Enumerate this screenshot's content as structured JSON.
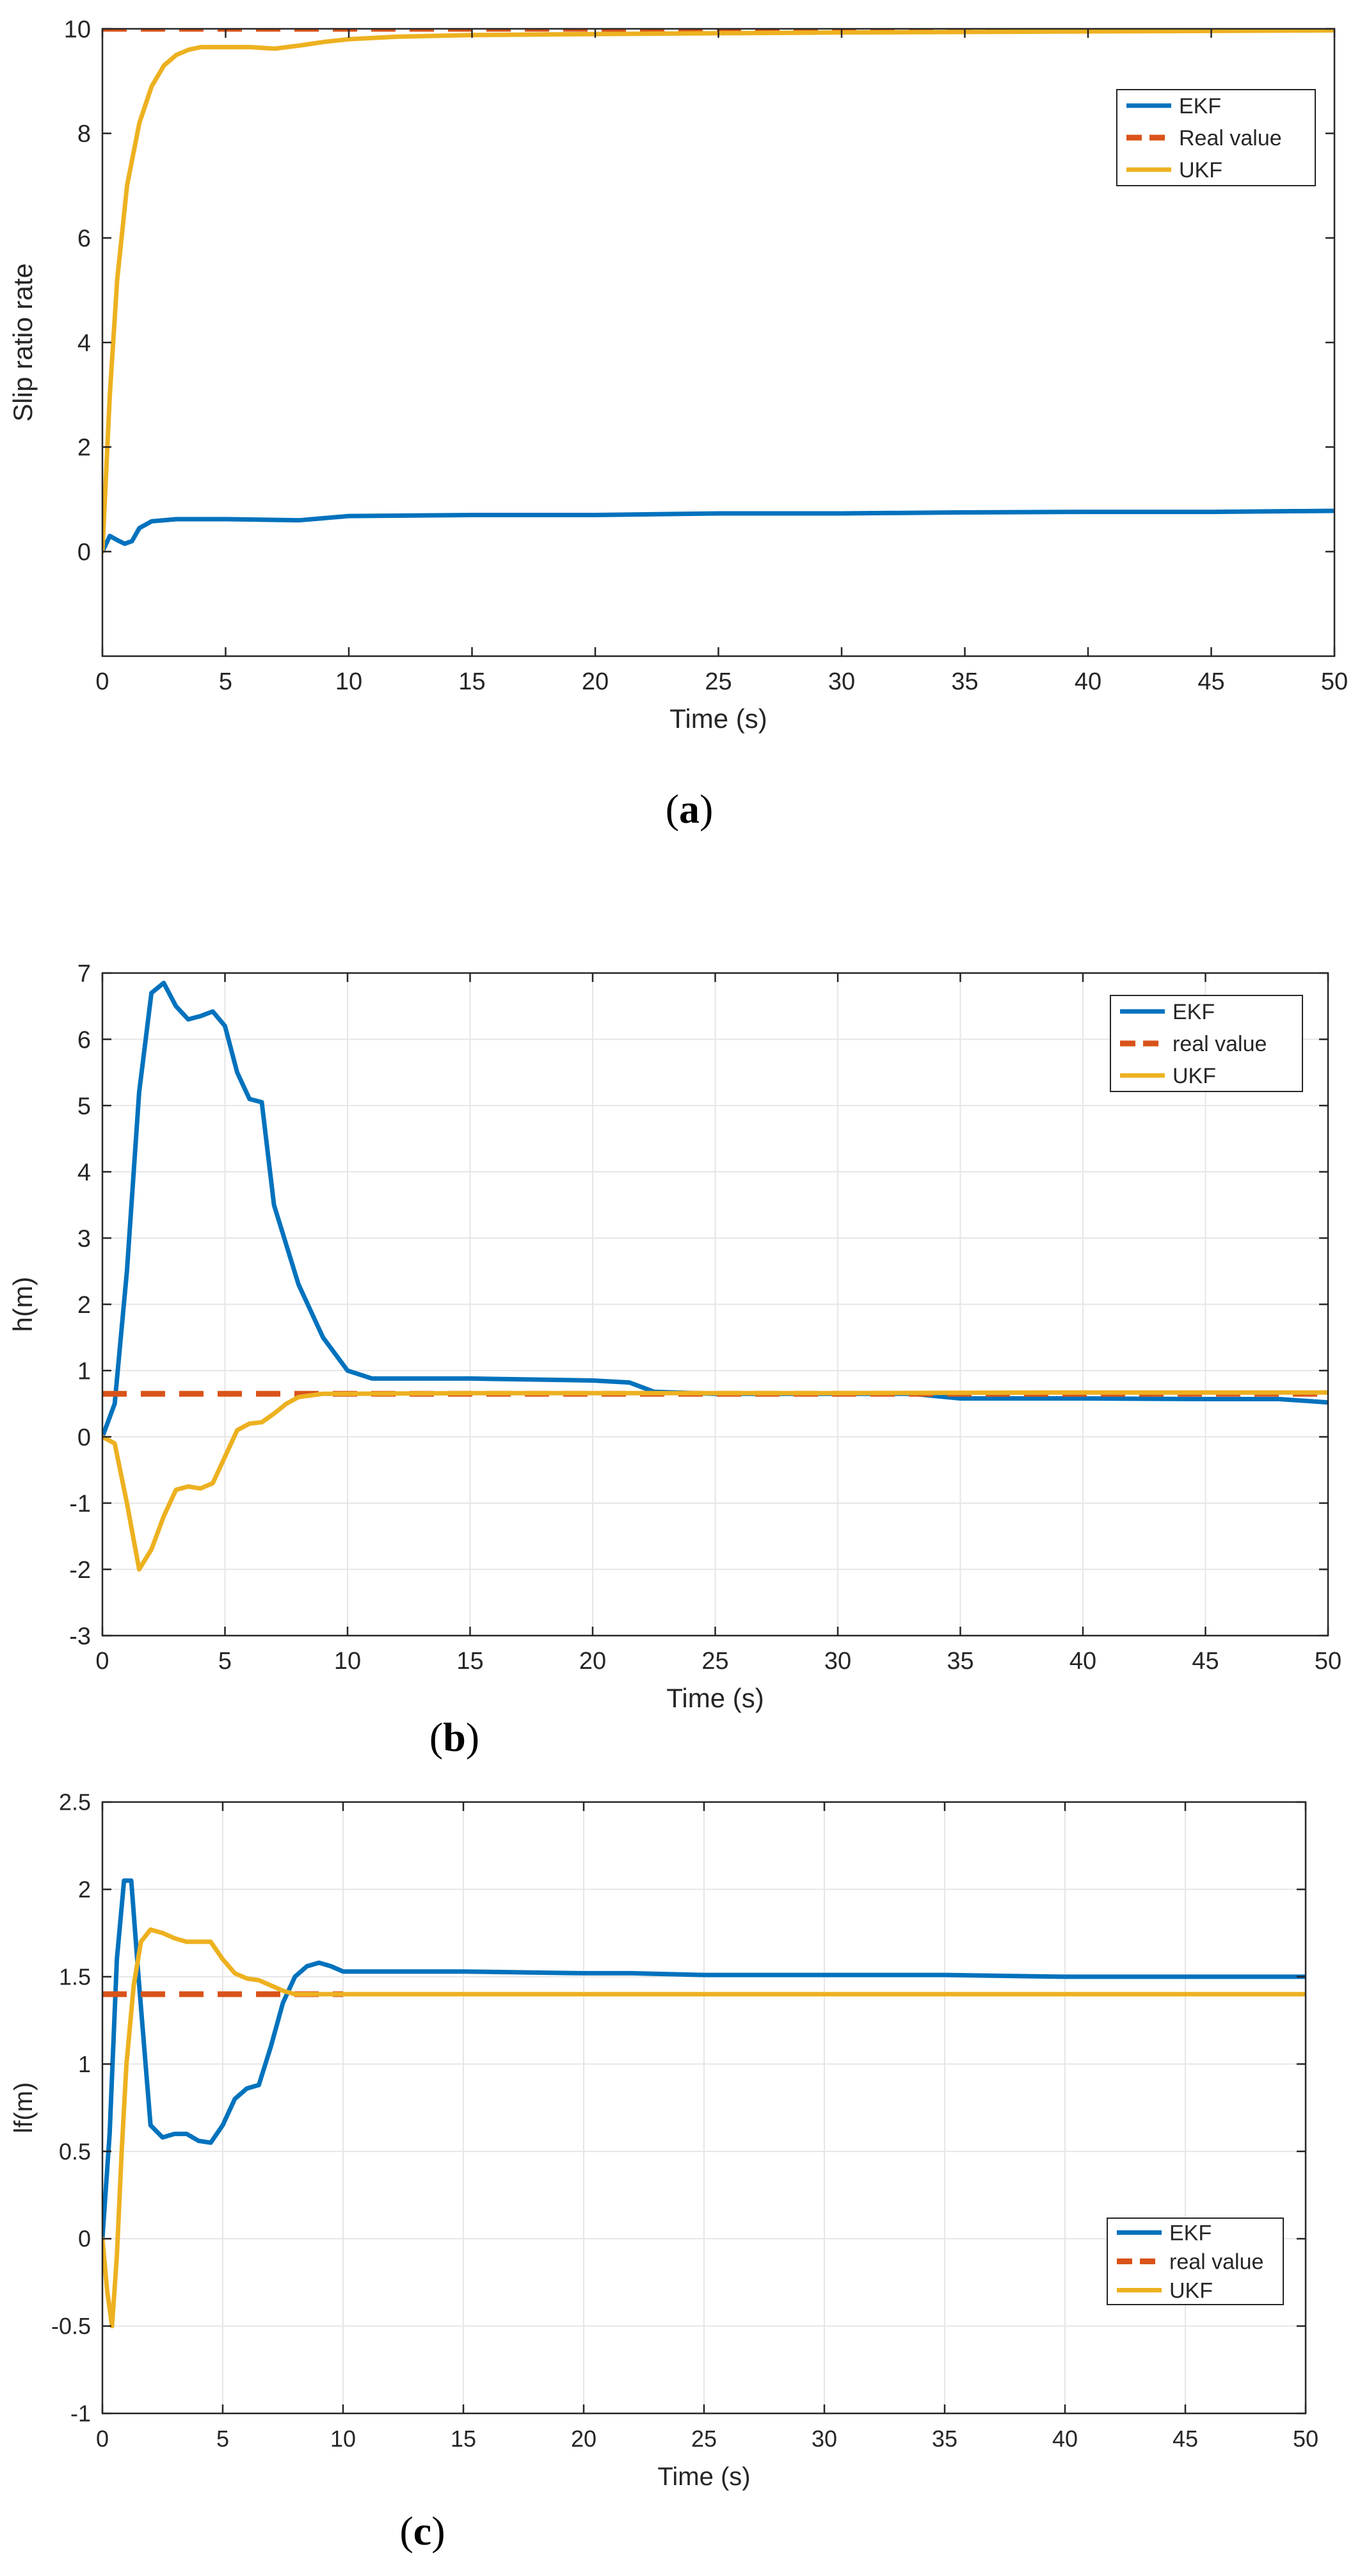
{
  "chart_data": [
    {
      "id": "a",
      "type": "line",
      "caption_letter": "a",
      "xlabel": "Time (s)",
      "ylabel": "Slip ratio rate",
      "xlim": [
        0,
        50
      ],
      "ylim": [
        -2,
        10
      ],
      "xticks": [
        0,
        5,
        10,
        15,
        20,
        25,
        30,
        35,
        40,
        45,
        50
      ],
      "yticks": [
        0,
        2,
        4,
        6,
        8,
        10
      ],
      "grid": false,
      "legend_position": "top-right",
      "series": [
        {
          "name": "EKF",
          "color": "#0072BD",
          "style": "solid",
          "x": [
            0,
            0.3,
            0.6,
            0.9,
            1.2,
            1.5,
            2,
            3,
            5,
            8,
            10,
            15,
            20,
            25,
            30,
            35,
            40,
            45,
            50
          ],
          "y": [
            0,
            0.3,
            0.22,
            0.15,
            0.2,
            0.45,
            0.58,
            0.62,
            0.62,
            0.6,
            0.68,
            0.7,
            0.7,
            0.73,
            0.73,
            0.75,
            0.76,
            0.76,
            0.78
          ]
        },
        {
          "name": "Real value",
          "color": "#D95319",
          "style": "dashed",
          "x": [
            0,
            50
          ],
          "y": [
            10,
            10
          ]
        },
        {
          "name": "UKF",
          "color": "#EDB120",
          "style": "solid",
          "x": [
            0,
            0.3,
            0.6,
            1,
            1.5,
            2,
            2.5,
            3,
            3.5,
            4,
            5,
            6,
            7,
            8,
            9,
            10,
            12,
            15,
            20,
            30,
            40,
            50
          ],
          "y": [
            0,
            3.0,
            5.2,
            7.0,
            8.2,
            8.9,
            9.3,
            9.5,
            9.6,
            9.65,
            9.65,
            9.65,
            9.62,
            9.68,
            9.75,
            9.8,
            9.85,
            9.88,
            9.9,
            9.93,
            9.95,
            9.97
          ]
        }
      ]
    },
    {
      "id": "b",
      "type": "line",
      "caption_letter": "b",
      "xlabel": "Time (s)",
      "ylabel": "h(m)",
      "xlim": [
        0,
        50
      ],
      "ylim": [
        -3,
        7
      ],
      "xticks": [
        0,
        5,
        10,
        15,
        20,
        25,
        30,
        35,
        40,
        45,
        50
      ],
      "yticks": [
        -3,
        -2,
        -1,
        0,
        1,
        2,
        3,
        4,
        5,
        6,
        7
      ],
      "grid": true,
      "legend_position": "top-right",
      "series": [
        {
          "name": "EKF",
          "color": "#0072BD",
          "style": "solid",
          "x": [
            0,
            0.5,
            1,
            1.5,
            2,
            2.5,
            3,
            3.5,
            4,
            4.5,
            5,
            5.5,
            6,
            6.5,
            7,
            8,
            9,
            10,
            11,
            15,
            20,
            21.5,
            22.5,
            25,
            30,
            33,
            35,
            40,
            45,
            48,
            50
          ],
          "y": [
            0,
            0.5,
            2.5,
            5.2,
            6.7,
            6.85,
            6.5,
            6.3,
            6.35,
            6.42,
            6.2,
            5.5,
            5.1,
            5.05,
            3.5,
            2.3,
            1.5,
            1.0,
            0.88,
            0.88,
            0.85,
            0.82,
            0.68,
            0.65,
            0.65,
            0.65,
            0.58,
            0.58,
            0.57,
            0.57,
            0.52
          ]
        },
        {
          "name": "real value",
          "color": "#D95319",
          "style": "dashed",
          "x": [
            0,
            50
          ],
          "y": [
            0.65,
            0.65
          ]
        },
        {
          "name": "UKF",
          "color": "#EDB120",
          "style": "solid",
          "x": [
            0,
            0.5,
            1,
            1.5,
            2,
            2.5,
            3,
            3.5,
            4,
            4.5,
            5,
            5.5,
            6,
            6.5,
            7,
            7.5,
            8,
            9,
            10,
            15,
            20,
            30,
            40,
            50
          ],
          "y": [
            0,
            -0.1,
            -1.0,
            -2.0,
            -1.7,
            -1.2,
            -0.8,
            -0.75,
            -0.78,
            -0.7,
            -0.3,
            0.1,
            0.2,
            0.22,
            0.35,
            0.5,
            0.6,
            0.65,
            0.65,
            0.66,
            0.66,
            0.66,
            0.67,
            0.67
          ]
        }
      ]
    },
    {
      "id": "c",
      "type": "line",
      "caption_letter": "c",
      "xlabel": "Time (s)",
      "ylabel": "lf(m)",
      "xlim": [
        0,
        50
      ],
      "ylim": [
        -1,
        2.5
      ],
      "xticks": [
        0,
        5,
        10,
        15,
        20,
        25,
        30,
        35,
        40,
        45,
        50
      ],
      "yticks": [
        -1,
        -0.5,
        0,
        0.5,
        1,
        1.5,
        2,
        2.5
      ],
      "grid": true,
      "legend_position": "bottom-right",
      "series": [
        {
          "name": "EKF",
          "color": "#0072BD",
          "style": "solid",
          "x": [
            0,
            0.3,
            0.6,
            0.9,
            1.2,
            1.5,
            2,
            2.5,
            3,
            3.5,
            4,
            4.5,
            5,
            5.5,
            6,
            6.5,
            7,
            7.5,
            8,
            8.5,
            9,
            9.5,
            10,
            15,
            20,
            22,
            25,
            30,
            35,
            40,
            45,
            50
          ],
          "y": [
            0,
            0.6,
            1.6,
            2.05,
            2.05,
            1.5,
            0.65,
            0.58,
            0.6,
            0.6,
            0.56,
            0.55,
            0.65,
            0.8,
            0.86,
            0.88,
            1.1,
            1.35,
            1.5,
            1.56,
            1.58,
            1.56,
            1.53,
            1.53,
            1.52,
            1.52,
            1.51,
            1.51,
            1.51,
            1.5,
            1.5,
            1.5
          ]
        },
        {
          "name": "real value",
          "color": "#D95319",
          "style": "dashed",
          "x": [
            0,
            10
          ],
          "y": [
            1.4,
            1.4
          ]
        },
        {
          "name": "UKF",
          "color": "#EDB120",
          "style": "solid",
          "x": [
            0,
            0.2,
            0.4,
            0.6,
            0.8,
            1,
            1.3,
            1.6,
            2,
            2.5,
            3,
            3.5,
            4,
            4.5,
            5,
            5.5,
            6,
            6.5,
            7,
            7.5,
            8,
            10,
            20,
            30,
            40,
            50
          ],
          "y": [
            0,
            -0.3,
            -0.5,
            -0.1,
            0.5,
            1.0,
            1.45,
            1.7,
            1.77,
            1.75,
            1.72,
            1.7,
            1.7,
            1.7,
            1.6,
            1.52,
            1.49,
            1.48,
            1.45,
            1.42,
            1.4,
            1.4,
            1.4,
            1.4,
            1.4,
            1.4
          ]
        }
      ]
    }
  ]
}
